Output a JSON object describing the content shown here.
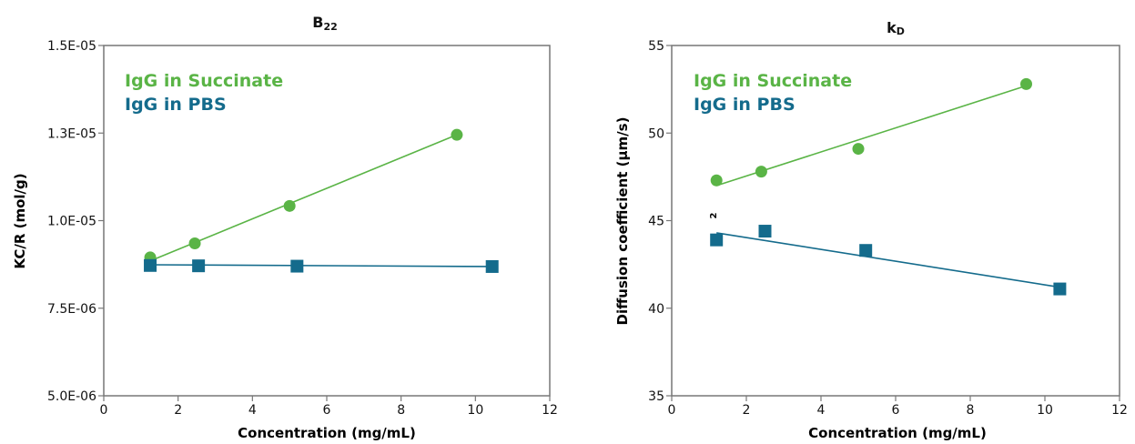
{
  "colors": {
    "succinate": "#5ab446",
    "pbs": "#146b8c",
    "frame": "#777777",
    "text": "#111111"
  },
  "chart_data": [
    {
      "type": "scatter",
      "title_main": "B",
      "title_sub": "22",
      "xlabel": "Concentration (mg/mL)",
      "ylabel": "KC/R (mol/g)",
      "xlim": [
        0,
        12
      ],
      "ylim": [
        5e-06,
        1.5e-05
      ],
      "xticks": [
        "0",
        "2",
        "4",
        "6",
        "8",
        "10",
        "12"
      ],
      "yticks": [
        "5.0E-06",
        "7.5E-06",
        "1.0E-05",
        "1.3E-05",
        "1.5E-05"
      ],
      "grid": false,
      "legend_position": "top-left",
      "series": [
        {
          "name": "IgG in Succinate",
          "marker": "circle",
          "color_key": "succinate",
          "x": [
            1.25,
            2.45,
            5.0,
            9.5
          ],
          "y": [
            8.95e-06,
            9.35e-06,
            1.042e-05,
            1.245e-05
          ],
          "fit": {
            "x": [
              1.25,
              9.5
            ],
            "y": [
              8.85e-06,
              1.245e-05
            ]
          }
        },
        {
          "name": "IgG in PBS",
          "marker": "square",
          "color_key": "pbs",
          "x": [
            1.25,
            2.55,
            5.2,
            10.45
          ],
          "y": [
            8.72e-06,
            8.71e-06,
            8.7e-06,
            8.69e-06
          ],
          "fit": {
            "x": [
              1.25,
              10.45
            ],
            "y": [
              8.74e-06,
              8.69e-06
            ]
          }
        }
      ]
    },
    {
      "type": "scatter",
      "title_main": "k",
      "title_sub": "D",
      "xlabel": "Concentration (mg/mL)",
      "ylabel": "Diffusion coefficient (μm/s)",
      "xlim": [
        0,
        12
      ],
      "ylim": [
        35,
        55
      ],
      "xticks": [
        "0",
        "2",
        "4",
        "6",
        "8",
        "10",
        "12"
      ],
      "yticks": [
        "35",
        "40",
        "45",
        "50",
        "55"
      ],
      "grid": false,
      "legend_position": "top-left",
      "annotation": "2",
      "series": [
        {
          "name": "IgG in Succinate",
          "marker": "circle",
          "color_key": "succinate",
          "x": [
            1.2,
            2.4,
            5.0,
            9.5
          ],
          "y": [
            47.3,
            47.8,
            49.1,
            52.8
          ],
          "fit": {
            "x": [
              1.2,
              9.5
            ],
            "y": [
              47.0,
              52.7
            ]
          }
        },
        {
          "name": "IgG in PBS",
          "marker": "square",
          "color_key": "pbs",
          "x": [
            1.2,
            2.5,
            5.2,
            10.4
          ],
          "y": [
            43.9,
            44.4,
            43.3,
            41.1
          ],
          "fit": {
            "x": [
              1.2,
              10.4
            ],
            "y": [
              44.3,
              41.2
            ]
          }
        }
      ]
    }
  ]
}
